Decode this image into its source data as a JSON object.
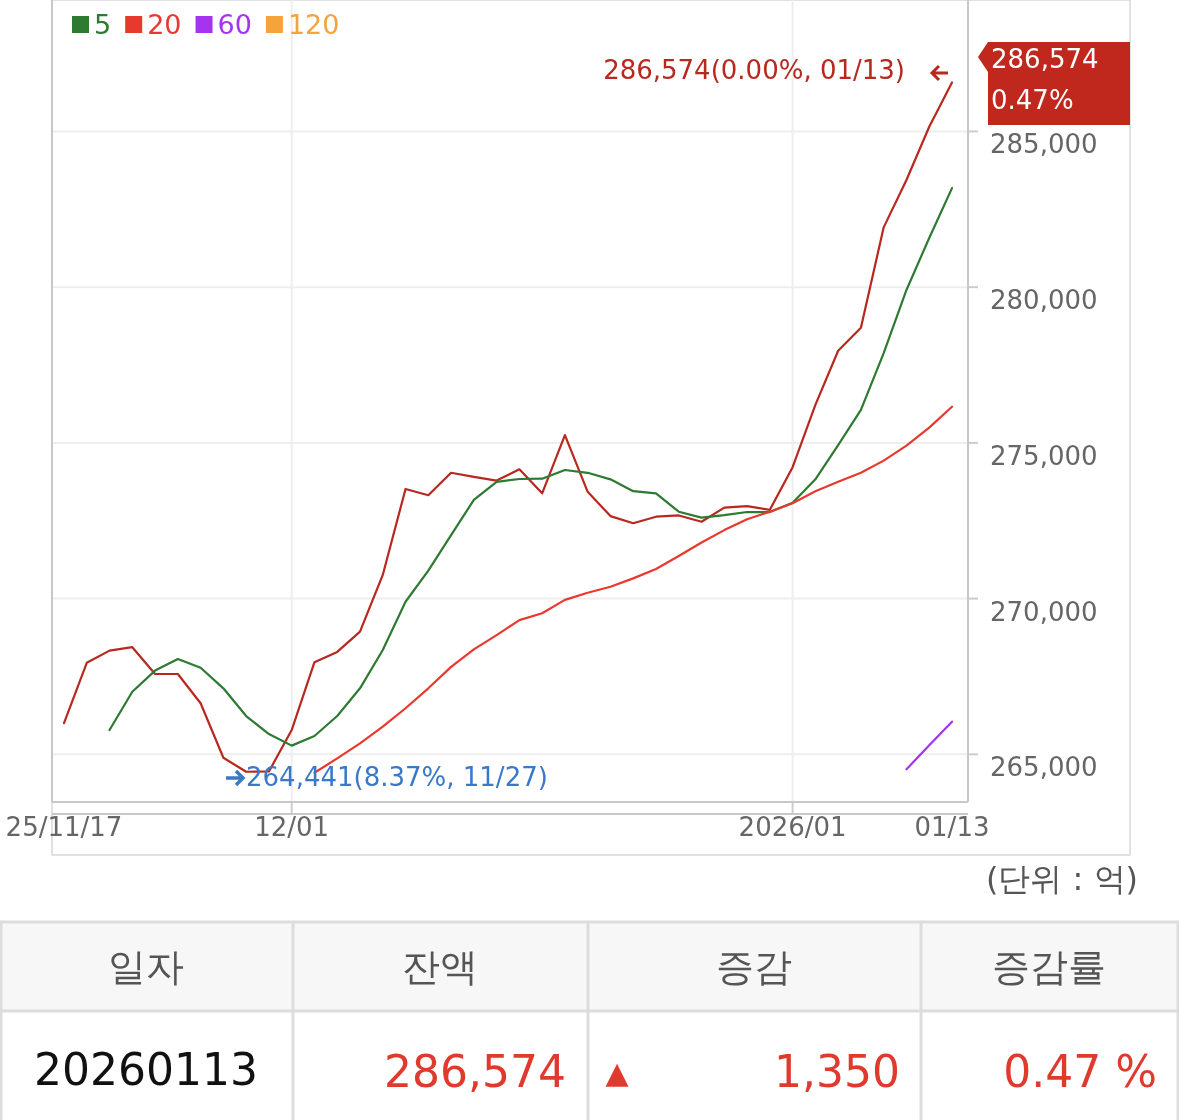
{
  "chart_data": {
    "type": "line",
    "categories": [
      "25/11/17",
      null,
      null,
      null,
      null,
      null,
      null,
      null,
      null,
      null,
      "12/01",
      null,
      null,
      null,
      null,
      null,
      null,
      null,
      null,
      null,
      null,
      null,
      null,
      null,
      null,
      null,
      null,
      null,
      null,
      null,
      null,
      null,
      "2026/01",
      null,
      null,
      null,
      null,
      null,
      null,
      "01/13"
    ],
    "series": [
      {
        "color": "#b8281f",
        "values": [
          266000,
          267940,
          268330,
          268440,
          267580,
          267580,
          266640,
          264890,
          264441,
          264450,
          265780,
          267960,
          268290,
          268940,
          270760,
          273520,
          273320,
          274040,
          273910,
          273790,
          274150,
          273380,
          275250,
          273430,
          272650,
          272420,
          272630,
          272670,
          272470,
          272920,
          272970,
          272850,
          274220,
          276220,
          277960,
          278700,
          281920,
          283440,
          285150,
          286574
        ]
      },
      {
        "name": "5",
        "color": "#2e7a32",
        "values": [
          null,
          null,
          265780,
          267010,
          267690,
          268060,
          267780,
          267120,
          266230,
          265650,
          265280,
          265590,
          266230,
          267120,
          268350,
          269900,
          270900,
          272040,
          273170,
          273750,
          273840,
          273850,
          274130,
          274040,
          273830,
          273450,
          273380,
          272790,
          272600,
          272680,
          272780,
          272780,
          273080,
          273830,
          274930,
          276060,
          277880,
          279910,
          281580,
          283180
        ]
      },
      {
        "name": "20",
        "color": "#e8392e",
        "values": [
          null,
          null,
          null,
          null,
          null,
          null,
          null,
          null,
          null,
          null,
          null,
          264410,
          264870,
          265350,
          265890,
          266480,
          267120,
          267810,
          268370,
          268830,
          269310,
          269530,
          269960,
          270190,
          270380,
          270650,
          270950,
          271370,
          271800,
          272200,
          272550,
          272790,
          273060,
          273450,
          273750,
          274040,
          274430,
          274910,
          275490,
          276160
        ]
      },
      {
        "name": "60",
        "color": "#a633f0",
        "values": [
          null,
          null,
          null,
          null,
          null,
          null,
          null,
          null,
          null,
          null,
          null,
          null,
          null,
          null,
          null,
          null,
          null,
          null,
          null,
          null,
          null,
          null,
          null,
          null,
          null,
          null,
          null,
          null,
          null,
          null,
          null,
          null,
          null,
          null,
          null,
          null,
          null,
          264520,
          265290,
          266050
        ]
      },
      {
        "name": "120",
        "color": "#f5a43c",
        "values": [
          null,
          null,
          null,
          null,
          null,
          null,
          null,
          null,
          null,
          null,
          null,
          null,
          null,
          null,
          null,
          null,
          null,
          null,
          null,
          null,
          null,
          null,
          null,
          null,
          null,
          null,
          null,
          null,
          null,
          null,
          null,
          null,
          null,
          null,
          null,
          null,
          null,
          null,
          null,
          null
        ]
      }
    ],
    "ylim": [
      263470,
      289220
    ],
    "yticks": [
      {
        "value": 265000,
        "label": "265,000"
      },
      {
        "value": 270000,
        "label": "270,000"
      },
      {
        "value": 275000,
        "label": "275,000"
      },
      {
        "value": 280000,
        "label": "280,000"
      },
      {
        "value": 285000,
        "label": "285,000"
      }
    ],
    "grid": true,
    "legend": "top left",
    "marker": "none",
    "line_style": "solid",
    "annotations": [
      "286,574(0.00%, 01/13)",
      "264,441(8.37%, 11/27)",
      "286,574",
      "0.47%",
      "(단위 : 억)",
      "일자",
      "잔액",
      "증감",
      "증감률",
      "20260113",
      "286,574",
      "▲",
      "1,350",
      "0.47 %"
    ]
  }
}
